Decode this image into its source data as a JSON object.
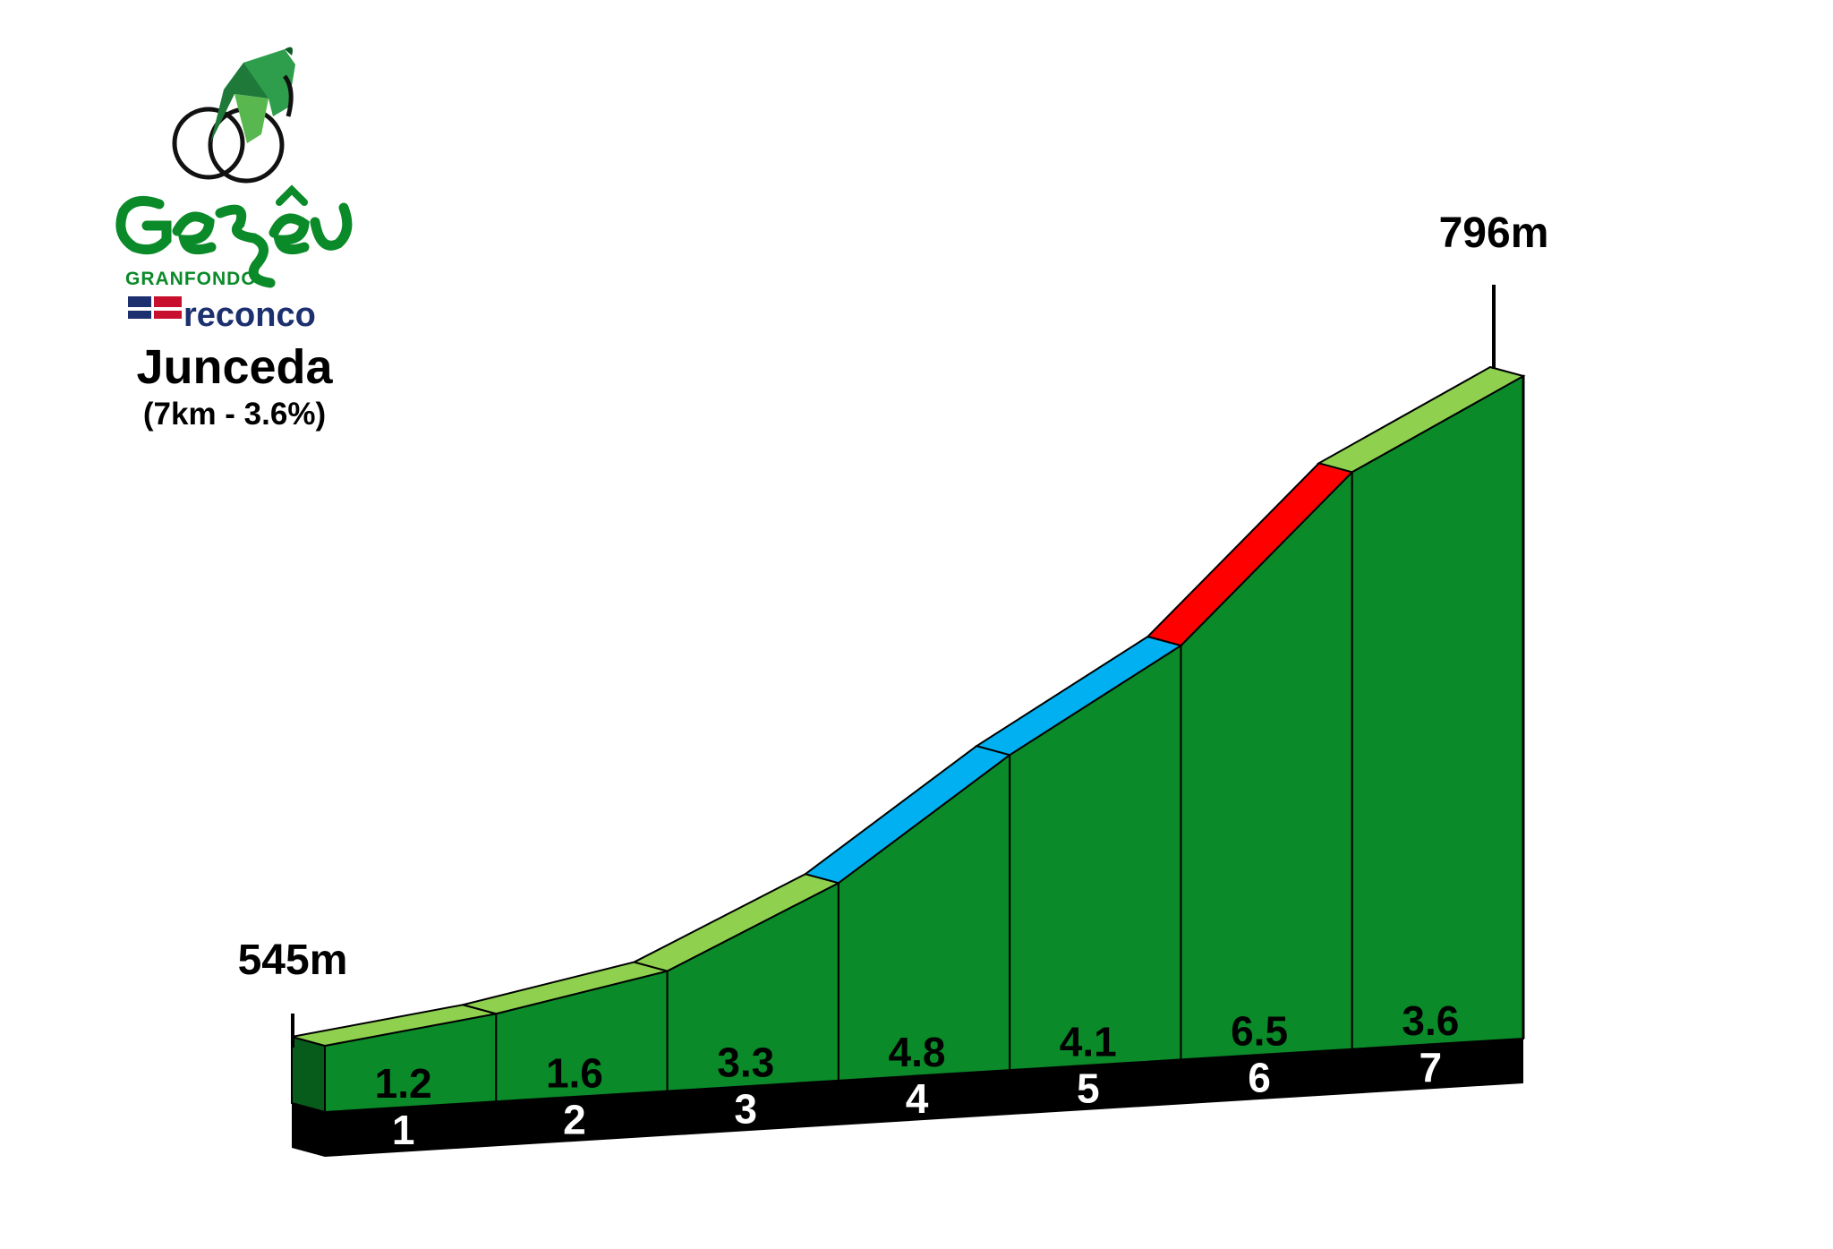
{
  "branding": {
    "logo_word": "Gerês",
    "logo_subtitle": "GRANFONDO",
    "sponsor": "reconco"
  },
  "chart_data": {
    "type": "area",
    "title": "Junceda",
    "subtitle": "(7km - 3.6%)",
    "start_label": "545m",
    "end_label": "796m",
    "start_elevation": 545,
    "end_elevation": 796,
    "categories": [
      "1",
      "2",
      "3",
      "4",
      "5",
      "6",
      "7"
    ],
    "values": [
      1.2,
      1.6,
      3.3,
      4.8,
      4.1,
      6.5,
      3.6
    ],
    "value_labels": [
      "1.2",
      "1.6",
      "3.3",
      "4.8",
      "4.1",
      "6.5",
      "3.6"
    ],
    "grade_colors": {
      "easy": "#8fd14f",
      "moderate": "#00b0f0",
      "hard": "#ff0000"
    },
    "segment_colors": [
      "#8fd14f",
      "#8fd14f",
      "#8fd14f",
      "#00b0f0",
      "#00b0f0",
      "#ff0000",
      "#8fd14f"
    ],
    "fill_color": "#0a8a28",
    "grid": false
  }
}
